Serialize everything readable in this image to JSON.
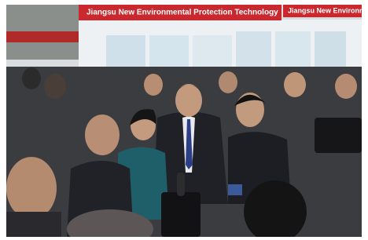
{
  "banners": [
    "Jiangsu New Environmental Protection Technology",
    "Jiangsu New Environme"
  ]
}
